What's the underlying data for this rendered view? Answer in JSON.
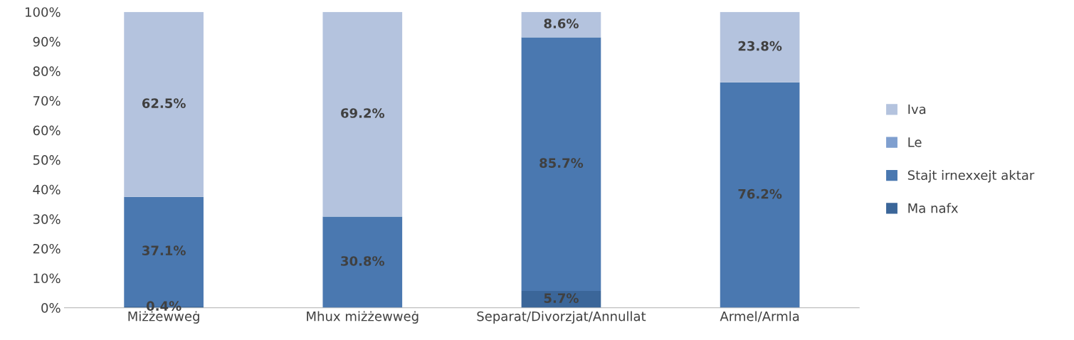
{
  "chart_data": {
    "type": "bar",
    "stacked": true,
    "categories": [
      "Miżżewweġ",
      "Mhux miżżewweġ",
      "Separat/Divorzjat/Annullat",
      "Armel/Armla"
    ],
    "series": [
      {
        "name": "Ma nafx",
        "color": "#3b6699",
        "values": [
          0.4,
          0,
          5.7,
          0
        ],
        "value_labels": [
          "0.4%",
          null,
          "5.7%",
          null
        ]
      },
      {
        "name": "Stajt irnexxejt aktar",
        "color": "#4a78b0",
        "values": [
          37.1,
          30.8,
          85.7,
          76.2
        ],
        "value_labels": [
          "37.1%",
          "30.8%",
          "85.7%",
          "76.2%"
        ]
      },
      {
        "name": "Le",
        "color": "#7f9fcf",
        "values": [
          0,
          0,
          0,
          0
        ],
        "value_labels": [
          null,
          null,
          null,
          null
        ]
      },
      {
        "name": "Iva",
        "color": "#b4c3de",
        "values": [
          62.5,
          69.2,
          8.6,
          23.8
        ],
        "value_labels": [
          "62.5%",
          "69.2%",
          "8.6%",
          "23.8%"
        ]
      }
    ],
    "ylim": [
      0,
      100
    ],
    "yticks": [
      {
        "value": 0,
        "label": "0%"
      },
      {
        "value": 10,
        "label": "10%"
      },
      {
        "value": 20,
        "label": "20%"
      },
      {
        "value": 30,
        "label": "30%"
      },
      {
        "value": 40,
        "label": "40%"
      },
      {
        "value": 50,
        "label": "50%"
      },
      {
        "value": 60,
        "label": "60%"
      },
      {
        "value": 70,
        "label": "70%"
      },
      {
        "value": 80,
        "label": "80%"
      },
      {
        "value": 90,
        "label": "90%"
      },
      {
        "value": 100,
        "label": "100%"
      }
    ],
    "grid": false,
    "legend": "right"
  }
}
